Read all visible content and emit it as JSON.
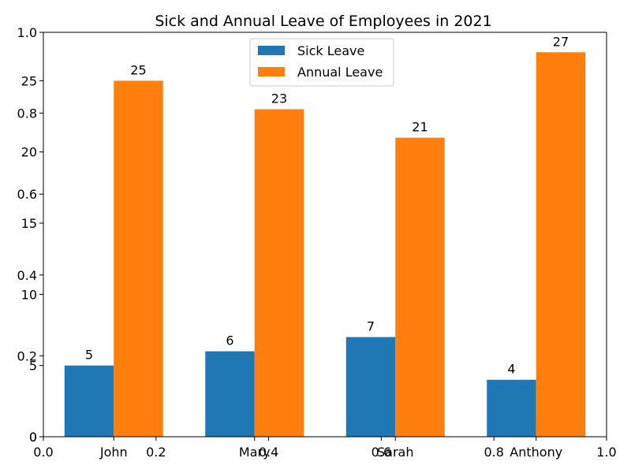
{
  "chart_data": {
    "type": "bar",
    "title": "Sick and Annual Leave of Employees in 2021",
    "categories": [
      "John",
      "Mary",
      "Sarah",
      "Anthony"
    ],
    "series": [
      {
        "name": "Sick Leave",
        "values": [
          5,
          6,
          7,
          4
        ],
        "color": "#1f77b4"
      },
      {
        "name": "Annual Leave",
        "values": [
          25,
          23,
          21,
          27
        ],
        "color": "#ff7f0e"
      }
    ],
    "ylim": [
      0,
      28.4
    ],
    "y_ticks": [
      "0",
      "5",
      "10",
      "15",
      "20",
      "25"
    ],
    "legend_position": "top-center",
    "overlay_axes": {
      "x_ticks": [
        "0.0",
        "0.2",
        "0.4",
        "0.6",
        "0.8",
        "1.0"
      ],
      "y_ticks": [
        "0",
        "0.2",
        "0.4",
        "0.6",
        "0.8",
        "1.0"
      ],
      "xlim": [
        0,
        1
      ],
      "ylim": [
        0,
        1
      ]
    }
  }
}
